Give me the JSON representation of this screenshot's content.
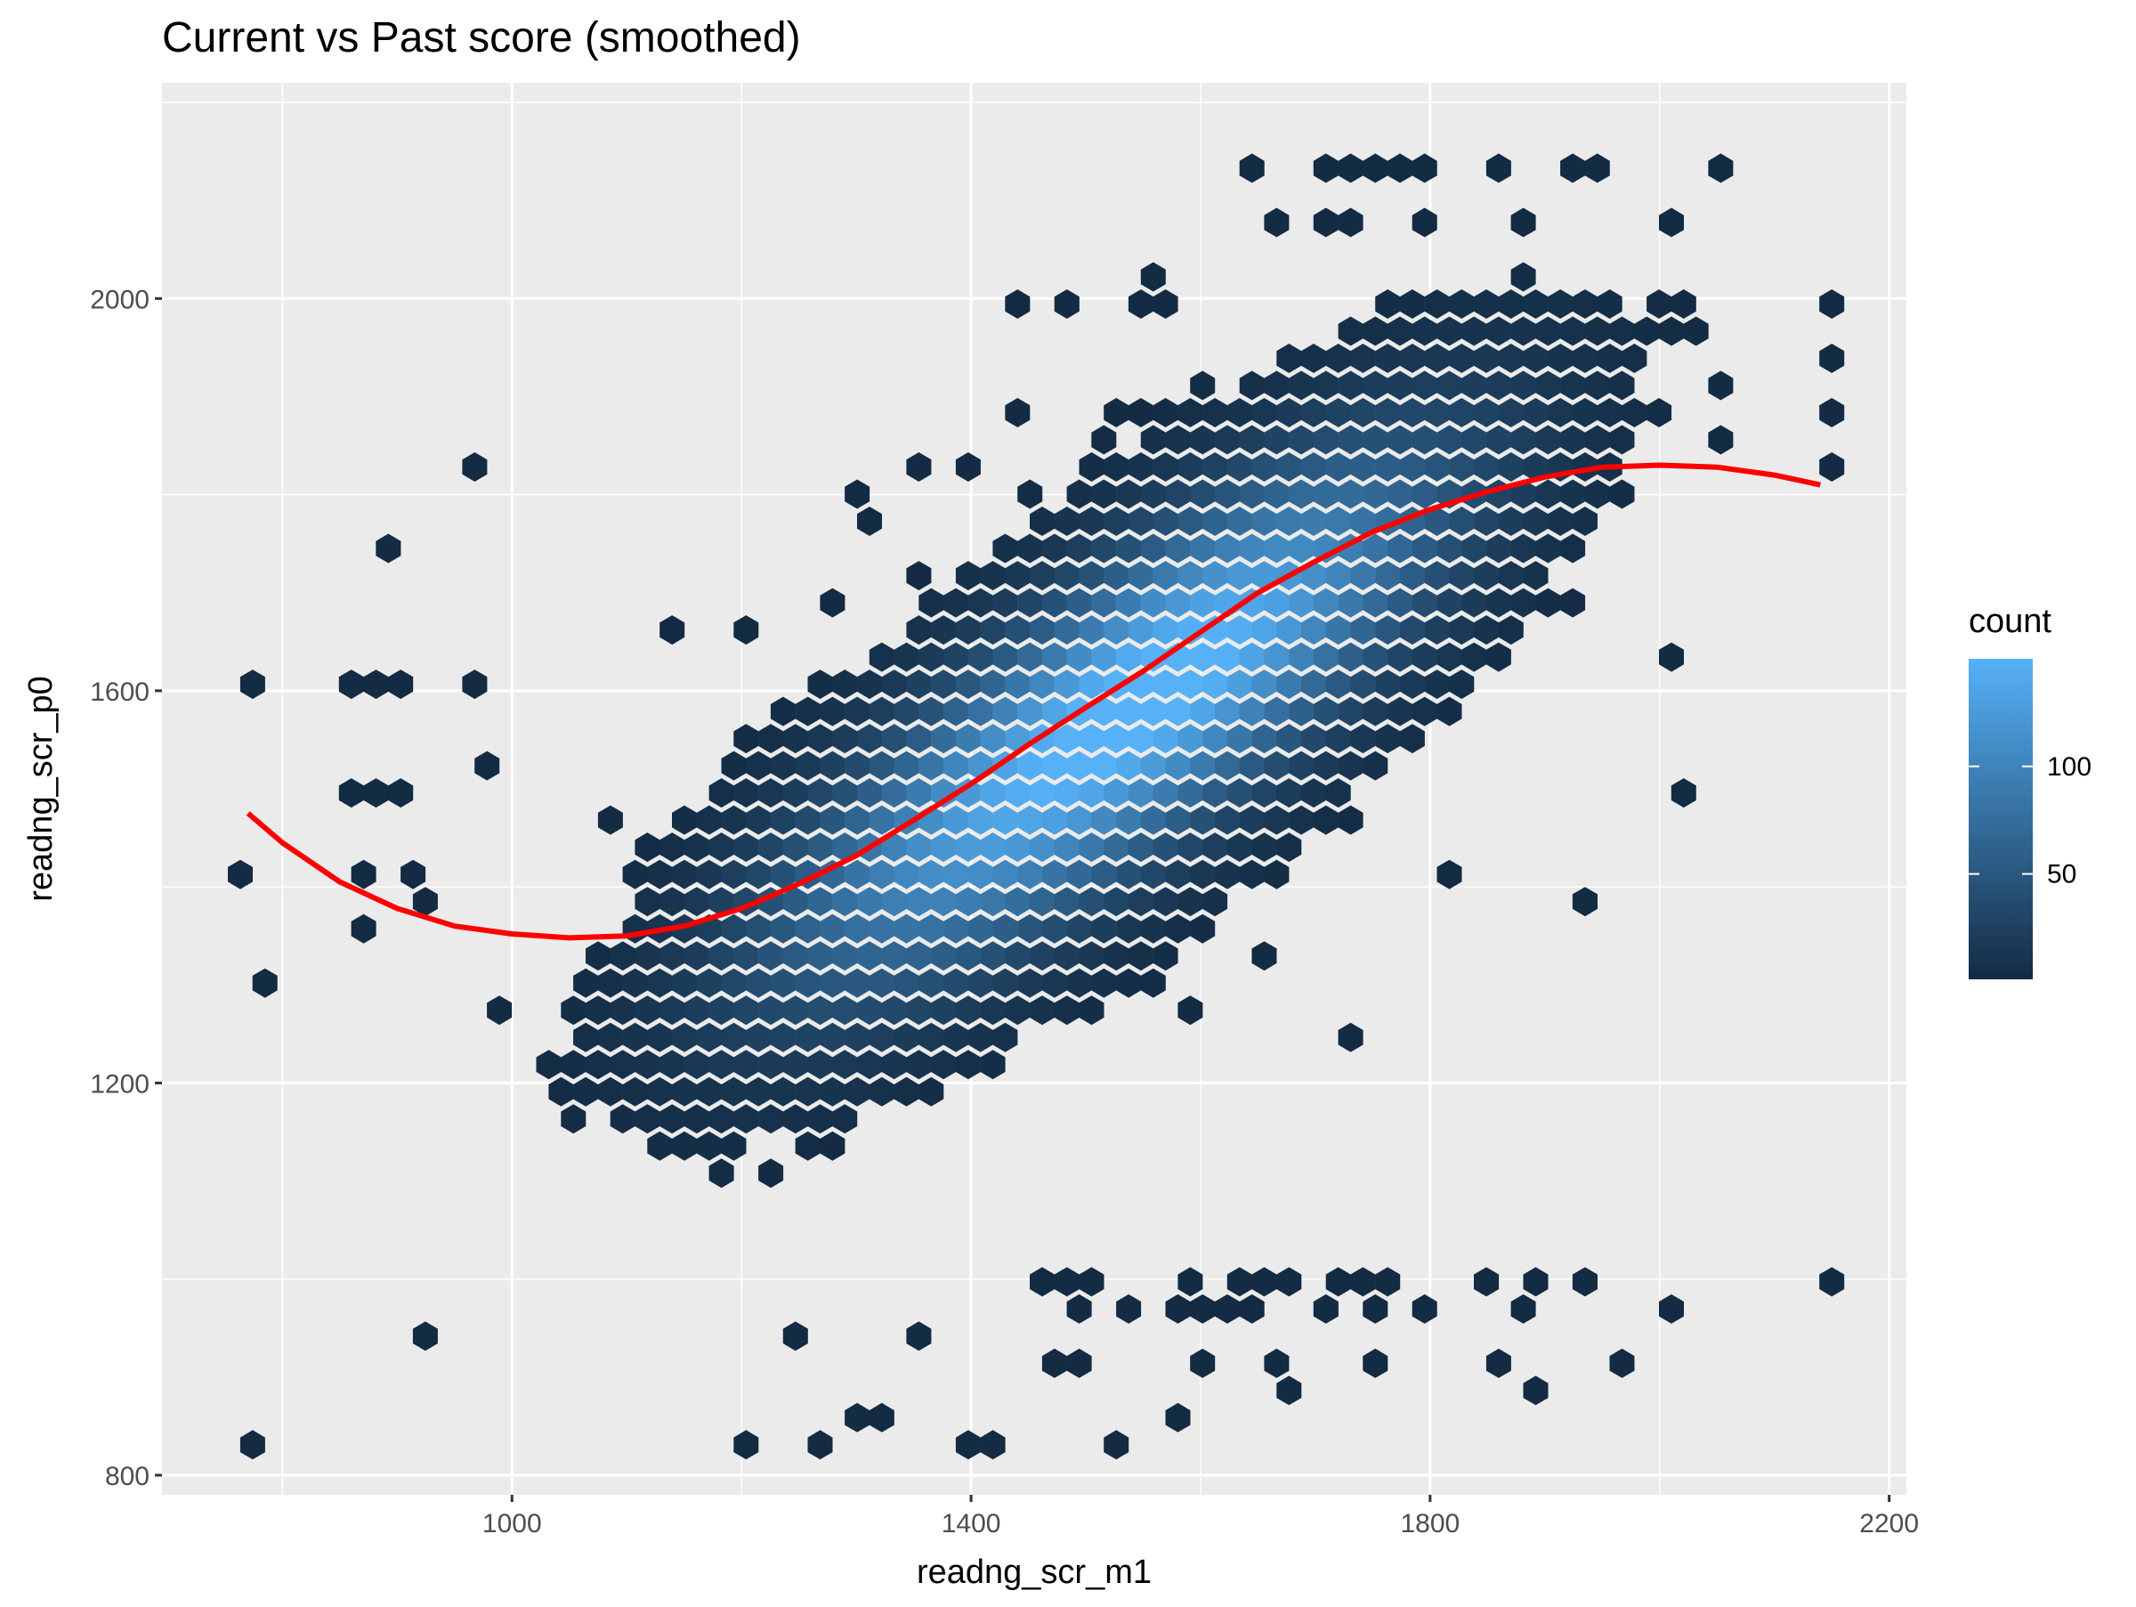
{
  "chart_data": {
    "type": "hexbin",
    "title": "Current vs Past score (smoothed)",
    "xlabel": "readng_scr_m1",
    "ylabel": "readng_scr_p0",
    "xlim": [
      695,
      2215
    ],
    "ylim": [
      780,
      2220
    ],
    "x_ticks": [
      1000,
      1400,
      1800,
      2200
    ],
    "y_ticks": [
      800,
      1200,
      1600,
      2000
    ],
    "grid": true,
    "legend": {
      "title": "count",
      "position": "right",
      "ticks": [
        50,
        100
      ],
      "min": 1,
      "max": 150,
      "color_low": "#132b43",
      "color_high": "#56b1f7"
    },
    "smooth_color": "#ff0000",
    "smooth_line": {
      "x": [
        770,
        800,
        850,
        900,
        950,
        1000,
        1050,
        1100,
        1150,
        1200,
        1250,
        1300,
        1350,
        1400,
        1450,
        1500,
        1550,
        1600,
        1650,
        1700,
        1750,
        1800,
        1850,
        1900,
        1950,
        2000,
        2050,
        2100,
        2140
      ],
      "y": [
        1475,
        1445,
        1405,
        1378,
        1360,
        1352,
        1348,
        1350,
        1360,
        1378,
        1403,
        1432,
        1468,
        1505,
        1545,
        1583,
        1620,
        1660,
        1700,
        1732,
        1762,
        1785,
        1803,
        1818,
        1828,
        1830,
        1828,
        1820,
        1810
      ]
    },
    "hex_clusters": [
      {
        "cx": 1580,
        "cy": 1620,
        "sx": 155,
        "sy": 150,
        "rho": 0.75,
        "peak": 150
      },
      {
        "cx": 1360,
        "cy": 1420,
        "sx": 130,
        "sy": 120,
        "rho": 0.6,
        "peak": 60
      }
    ],
    "outliers": [
      [
        770,
        1620
      ],
      [
        770,
        1420
      ],
      [
        780,
        1290
      ],
      [
        770,
        830
      ],
      [
        860,
        1620
      ],
      [
        880,
        1600
      ],
      [
        900,
        1620
      ],
      [
        860,
        1500
      ],
      [
        880,
        1500
      ],
      [
        910,
        1500
      ],
      [
        860,
        1370
      ],
      [
        880,
        1410
      ],
      [
        910,
        1400
      ],
      [
        920,
        1380
      ],
      [
        900,
        1740
      ],
      [
        970,
        1820
      ],
      [
        970,
        1620
      ],
      [
        970,
        1530
      ],
      [
        990,
        1270
      ],
      [
        920,
        950
      ],
      [
        1060,
        1240
      ],
      [
        1090,
        1480
      ],
      [
        1130,
        1670
      ],
      [
        1200,
        1650
      ],
      [
        1210,
        1670
      ],
      [
        1190,
        1160
      ],
      [
        1160,
        1140
      ],
      [
        1230,
        1120
      ],
      [
        1250,
        1140
      ],
      [
        1270,
        1140
      ],
      [
        1250,
        950
      ],
      [
        1350,
        950
      ],
      [
        1200,
        830
      ],
      [
        1260,
        830
      ],
      [
        1300,
        860
      ],
      [
        1330,
        860
      ],
      [
        1390,
        830
      ],
      [
        1420,
        830
      ],
      [
        1530,
        830
      ],
      [
        1570,
        860
      ],
      [
        1270,
        1700
      ],
      [
        1310,
        1760
      ],
      [
        1310,
        1800
      ],
      [
        1360,
        1840
      ],
      [
        1390,
        1840
      ],
      [
        1450,
        1870
      ],
      [
        1450,
        2000
      ],
      [
        1480,
        2000
      ],
      [
        1540,
        1990
      ],
      [
        1560,
        2010
      ],
      [
        1580,
        1990
      ],
      [
        1520,
        1870
      ],
      [
        1540,
        1890
      ],
      [
        1640,
        2120
      ],
      [
        1660,
        2070
      ],
      [
        1700,
        2120
      ],
      [
        1730,
        2120
      ],
      [
        1760,
        2120
      ],
      [
        1780,
        2120
      ],
      [
        1800,
        2120
      ],
      [
        1710,
        2070
      ],
      [
        1740,
        2070
      ],
      [
        1800,
        2070
      ],
      [
        1850,
        2140
      ],
      [
        1860,
        2120
      ],
      [
        1940,
        2140
      ],
      [
        1930,
        2120
      ],
      [
        1880,
        2070
      ],
      [
        2060,
        2120
      ],
      [
        2020,
        2070
      ],
      [
        2150,
        2000
      ],
      [
        2140,
        1940
      ],
      [
        2140,
        1890
      ],
      [
        2140,
        1840
      ],
      [
        2150,
        1820
      ],
      [
        2060,
        1860
      ],
      [
        2060,
        1900
      ],
      [
        2030,
        1980
      ],
      [
        2020,
        2000
      ],
      [
        2020,
        1640
      ],
      [
        2030,
        1500
      ],
      [
        1930,
        1390
      ],
      [
        1810,
        1410
      ],
      [
        1740,
        1240
      ],
      [
        1650,
        1320
      ],
      [
        1600,
        1270
      ],
      [
        1500,
        1270
      ],
      [
        1480,
        1300
      ],
      [
        1540,
        1310
      ],
      [
        1440,
        1300
      ],
      [
        1460,
        1000
      ],
      [
        1480,
        1000
      ],
      [
        1500,
        1000
      ],
      [
        1540,
        960
      ],
      [
        1570,
        960
      ],
      [
        1600,
        990
      ],
      [
        1620,
        960
      ],
      [
        1650,
        960
      ],
      [
        1680,
        990
      ],
      [
        1710,
        960
      ],
      [
        1740,
        990
      ],
      [
        1770,
        990
      ],
      [
        1800,
        960
      ],
      [
        1840,
        990
      ],
      [
        1880,
        960
      ],
      [
        1900,
        990
      ],
      [
        1930,
        990
      ],
      [
        1860,
        920
      ],
      [
        1960,
        920
      ],
      [
        2020,
        960
      ],
      [
        2140,
        990
      ],
      [
        1480,
        920
      ],
      [
        1500,
        920
      ],
      [
        1600,
        920
      ],
      [
        1660,
        920
      ],
      [
        1680,
        890
      ],
      [
        1750,
        920
      ],
      [
        1900,
        890
      ],
      [
        1580,
        960
      ],
      [
        1630,
        990
      ],
      [
        1660,
        990
      ],
      [
        1720,
        990
      ],
      [
        1760,
        960
      ],
      [
        1600,
        960
      ],
      [
        1500,
        960
      ]
    ]
  }
}
